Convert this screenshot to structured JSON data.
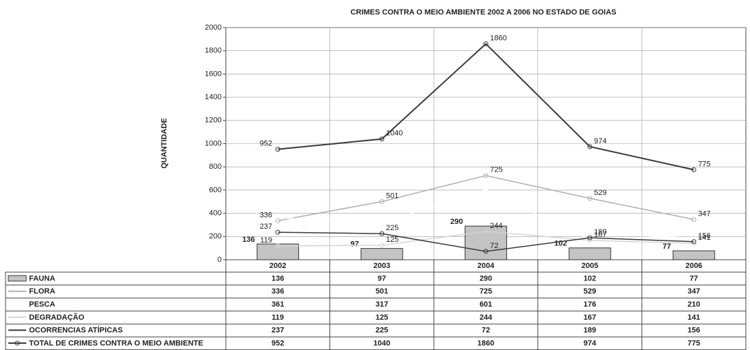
{
  "chart_data": {
    "type": "bar",
    "title": "CRIMES CONTRA O MEIO AMBIENTE 2002 A 2006 NO ESTADO DE GOIAS",
    "y_label": "QUANTIDADE",
    "categories": [
      "2002",
      "2003",
      "2004",
      "2005",
      "2006"
    ],
    "series": [
      {
        "name": "FAUNA",
        "type": "bar",
        "color": "#c4c4c4",
        "values": [
          136,
          97,
          290,
          102,
          77
        ]
      },
      {
        "name": "FLORA",
        "type": "line",
        "color": "#b0b0b0",
        "values": [
          336,
          501,
          725,
          529,
          347
        ]
      },
      {
        "name": "PESCA",
        "type": "line",
        "color": "#ffffff",
        "values": [
          361,
          317,
          601,
          176,
          210
        ]
      },
      {
        "name": "DEGRADAÇÃO",
        "type": "line",
        "color": "#d4d4d4",
        "values": [
          119,
          125,
          244,
          167,
          141
        ]
      },
      {
        "name": "OCORRENCIAS ATÍPICAS",
        "type": "line",
        "color": "#3a3a3a",
        "values": [
          237,
          225,
          72,
          189,
          156
        ]
      },
      {
        "name": "TOTAL DE CRIMES CONTRA O MEIO AMBIENTE",
        "type": "line",
        "color": "#3a3a3a",
        "values": [
          952,
          1040,
          1860,
          974,
          775
        ]
      }
    ],
    "ylim": [
      0,
      2000
    ],
    "yticks": [
      0,
      200,
      400,
      600,
      800,
      1000,
      1200,
      1400,
      1600,
      1800,
      2000
    ],
    "grid": true
  }
}
